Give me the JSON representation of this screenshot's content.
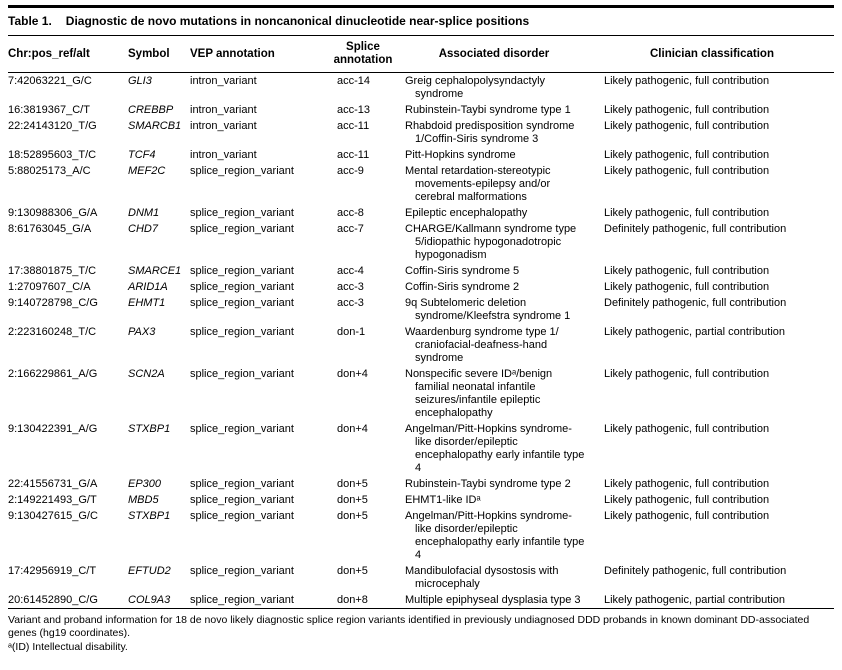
{
  "table": {
    "label": "Table 1.",
    "title": "Diagnostic de novo mutations in noncanonical dinucleotide near-splice positions",
    "columns": [
      "Chr:pos_ref/alt",
      "Symbol",
      "VEP annotation",
      "Splice annotation",
      "Associated disorder",
      "Clinician classification"
    ],
    "rows": [
      {
        "chr_pos": "7:42063221_G/C",
        "symbol": "GLI3",
        "vep": "intron_variant",
        "splice": "acc-14",
        "disorder": "Greig cephalopolysyndactyly syndrome",
        "classification": "Likely pathogenic, full contribution"
      },
      {
        "chr_pos": "16:3819367_C/T",
        "symbol": "CREBBP",
        "vep": "intron_variant",
        "splice": "acc-13",
        "disorder": "Rubinstein-Taybi syndrome type 1",
        "classification": "Likely pathogenic, full contribution"
      },
      {
        "chr_pos": "22:24143120_T/G",
        "symbol": "SMARCB1",
        "vep": "intron_variant",
        "splice": "acc-11",
        "disorder": "Rhabdoid predisposition syndrome 1/Coffin-Siris syndrome 3",
        "classification": "Likely pathogenic, full contribution"
      },
      {
        "chr_pos": "18:52895603_T/C",
        "symbol": "TCF4",
        "vep": "intron_variant",
        "splice": "acc-11",
        "disorder": "Pitt-Hopkins syndrome",
        "classification": "Likely pathogenic, full contribution"
      },
      {
        "chr_pos": "5:88025173_A/C",
        "symbol": "MEF2C",
        "vep": "splice_region_variant",
        "splice": "acc-9",
        "disorder": "Mental retardation-stereotypic movements-epilepsy and/or cerebral malformations",
        "classification": "Likely pathogenic, full contribution"
      },
      {
        "chr_pos": "9:130988306_G/A",
        "symbol": "DNM1",
        "vep": "splice_region_variant",
        "splice": "acc-8",
        "disorder": "Epileptic encephalopathy",
        "classification": "Likely pathogenic, full contribution"
      },
      {
        "chr_pos": "8:61763045_G/A",
        "symbol": "CHD7",
        "vep": "splice_region_variant",
        "splice": "acc-7",
        "disorder": "CHARGE/Kallmann syndrome type 5/idiopathic hypogonadotropic hypogonadism",
        "classification": "Definitely pathogenic, full contribution"
      },
      {
        "chr_pos": "17:38801875_T/C",
        "symbol": "SMARCE1",
        "vep": "splice_region_variant",
        "splice": "acc-4",
        "disorder": "Coffin-Siris syndrome 5",
        "classification": "Likely pathogenic, full contribution"
      },
      {
        "chr_pos": "1:27097607_C/A",
        "symbol": "ARID1A",
        "vep": "splice_region_variant",
        "splice": "acc-3",
        "disorder": "Coffin-Siris syndrome 2",
        "classification": "Likely pathogenic, full contribution"
      },
      {
        "chr_pos": "9:140728798_C/G",
        "symbol": "EHMT1",
        "vep": "splice_region_variant",
        "splice": "acc-3",
        "disorder": "9q Subtelomeric deletion syndrome/Kleefstra syndrome 1",
        "classification": "Definitely pathogenic, full contribution"
      },
      {
        "chr_pos": "2:223160248_T/C",
        "symbol": "PAX3",
        "vep": "splice_region_variant",
        "splice": "don-1",
        "disorder": "Waardenburg syndrome type 1/ craniofacial-deafness-hand syndrome",
        "classification": "Likely pathogenic, partial contribution"
      },
      {
        "chr_pos": "2:166229861_A/G",
        "symbol": "SCN2A",
        "vep": "splice_region_variant",
        "splice": "don+4",
        "disorder": "Nonspecific severe IDᵃ/benign familial neonatal infantile seizures/infantile epileptic encephalopathy",
        "classification": "Likely pathogenic, full contribution"
      },
      {
        "chr_pos": "9:130422391_A/G",
        "symbol": "STXBP1",
        "vep": "splice_region_variant",
        "splice": "don+4",
        "disorder": "Angelman/Pitt-Hopkins syndrome-like disorder/epileptic encephalopathy early infantile type 4",
        "classification": "Likely pathogenic, full contribution"
      },
      {
        "chr_pos": "22:41556731_G/A",
        "symbol": "EP300",
        "vep": "splice_region_variant",
        "splice": "don+5",
        "disorder": "Rubinstein-Taybi syndrome type 2",
        "classification": "Likely pathogenic, full contribution"
      },
      {
        "chr_pos": "2:149221493_G/T",
        "symbol": "MBD5",
        "vep": "splice_region_variant",
        "splice": "don+5",
        "disorder": "EHMT1-like IDᵃ",
        "classification": "Likely pathogenic, full contribution"
      },
      {
        "chr_pos": "9:130427615_G/C",
        "symbol": "STXBP1",
        "vep": "splice_region_variant",
        "splice": "don+5",
        "disorder": "Angelman/Pitt-Hopkins syndrome-like disorder/epileptic encephalopathy early infantile type 4",
        "classification": "Likely pathogenic, full contribution"
      },
      {
        "chr_pos": "17:42956919_C/T",
        "symbol": "EFTUD2",
        "vep": "splice_region_variant",
        "splice": "don+5",
        "disorder": "Mandibulofacial dysostosis with microcephaly",
        "classification": "Definitely pathogenic, full contribution"
      },
      {
        "chr_pos": "20:61452890_C/G",
        "symbol": "COL9A3",
        "vep": "splice_region_variant",
        "splice": "don+8",
        "disorder": "Multiple epiphyseal dysplasia type 3",
        "classification": "Likely pathogenic, partial contribution"
      }
    ],
    "footnotes": [
      "Variant and proband information for 18 de novo likely diagnostic splice region variants identified in previously undiagnosed DDD probands in known dominant DD-associated genes (hg19 coordinates).",
      "ᵃ(ID) Intellectual disability."
    ]
  }
}
